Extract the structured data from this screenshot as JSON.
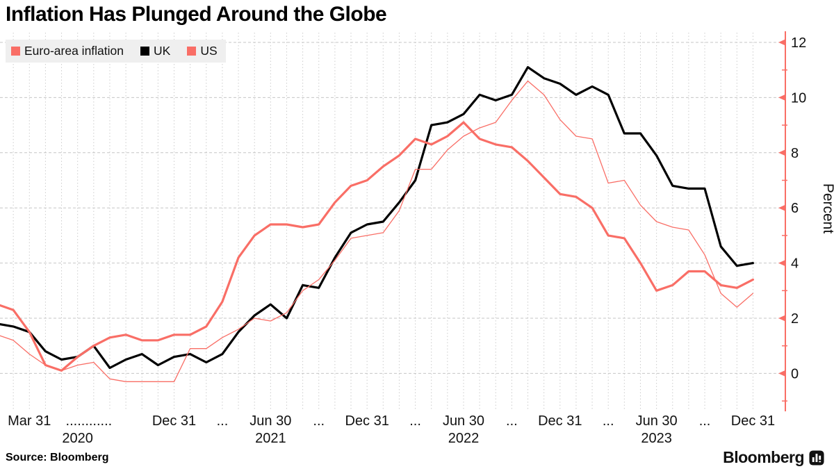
{
  "title": "Inflation Has Plunged Around the Globe",
  "source": "Source: Bloomberg",
  "brand": {
    "name": "Bloomberg",
    "icon": "bar-chart-icon"
  },
  "colors": {
    "salmon": "#f96e66",
    "uk_black": "#000000",
    "grid": "#cccccc",
    "legend_bg": "#efefef",
    "axis": "#f96e66",
    "text": "#111111"
  },
  "legend": [
    {
      "label": "Euro-area inflation",
      "color": "#f96e66"
    },
    {
      "label": "UK",
      "color": "#000000"
    },
    {
      "label": "US",
      "color": "#f96e66"
    }
  ],
  "chart_data": {
    "type": "line",
    "title": "Inflation Has Plunged Around the Globe",
    "ylabel": "Percent",
    "x_unit": "month",
    "x_start": "2020-01",
    "x_end": "2023-12",
    "ylim": [
      -1.3,
      12.4
    ],
    "grid": "dotted monthly verticals, dashed horizontals at even values",
    "legend_position": "top-left",
    "yticks_major": [
      0,
      2,
      4,
      6,
      8,
      10,
      12
    ],
    "yticks_minor": [
      -1,
      1,
      3,
      5,
      7,
      9,
      11
    ],
    "x_ticks": [
      {
        "m": 2,
        "label": "Mar 31"
      },
      {
        "m": 5.7,
        "label": "............",
        "year": "2020",
        "year_m": 5
      },
      {
        "m": 11,
        "label": "Dec 31"
      },
      {
        "m": 14,
        "label": "..."
      },
      {
        "m": 17,
        "label": "Jun 30",
        "year": "2021",
        "year_m": 17
      },
      {
        "m": 20,
        "label": "..."
      },
      {
        "m": 23,
        "label": "Dec 31"
      },
      {
        "m": 26,
        "label": "..."
      },
      {
        "m": 29,
        "label": "Jun 30",
        "year": "2022",
        "year_m": 29
      },
      {
        "m": 32,
        "label": "..."
      },
      {
        "m": 35,
        "label": "Dec 31"
      },
      {
        "m": 38,
        "label": "..."
      },
      {
        "m": 41,
        "label": "Jun 30",
        "year": "2023",
        "year_m": 41
      },
      {
        "m": 44,
        "label": "..."
      },
      {
        "m": 47,
        "label": "Dec 31"
      }
    ],
    "draw_order": [
      1,
      2,
      0
    ],
    "series": [
      {
        "name": "Euro-area inflation",
        "color": "#f96e66",
        "width": 1.3,
        "values": [
          1.4,
          1.2,
          0.7,
          0.3,
          0.1,
          0.3,
          0.4,
          -0.2,
          -0.3,
          -0.3,
          -0.3,
          -0.3,
          0.9,
          0.9,
          1.3,
          1.6,
          2.0,
          1.9,
          2.2,
          3.0,
          3.4,
          4.1,
          4.9,
          5.0,
          5.1,
          5.9,
          7.4,
          7.4,
          8.1,
          8.6,
          8.9,
          9.1,
          9.9,
          10.6,
          10.1,
          9.2,
          8.6,
          8.5,
          6.9,
          7.0,
          6.1,
          5.5,
          5.3,
          5.2,
          4.3,
          2.9,
          2.4,
          2.9
        ]
      },
      {
        "name": "UK",
        "color": "#000000",
        "width": 3.2,
        "values": [
          1.8,
          1.7,
          1.5,
          0.8,
          0.5,
          0.6,
          1.0,
          0.2,
          0.5,
          0.7,
          0.3,
          0.6,
          0.7,
          0.4,
          0.7,
          1.5,
          2.1,
          2.5,
          2.0,
          3.2,
          3.1,
          4.2,
          5.1,
          5.4,
          5.5,
          6.2,
          7.0,
          9.0,
          9.1,
          9.4,
          10.1,
          9.9,
          10.1,
          11.1,
          10.7,
          10.5,
          10.1,
          10.4,
          10.1,
          8.7,
          8.7,
          7.9,
          6.8,
          6.7,
          6.7,
          4.6,
          3.9,
          4.0
        ]
      },
      {
        "name": "US",
        "color": "#f96e66",
        "width": 3.2,
        "values": [
          2.5,
          2.3,
          1.5,
          0.3,
          0.1,
          0.6,
          1.0,
          1.3,
          1.4,
          1.2,
          1.2,
          1.4,
          1.4,
          1.7,
          2.6,
          4.2,
          5.0,
          5.4,
          5.4,
          5.3,
          5.4,
          6.2,
          6.8,
          7.0,
          7.5,
          7.9,
          8.5,
          8.3,
          8.6,
          9.1,
          8.5,
          8.3,
          8.2,
          7.7,
          7.1,
          6.5,
          6.4,
          6.0,
          5.0,
          4.9,
          4.0,
          3.0,
          3.2,
          3.7,
          3.7,
          3.2,
          3.1,
          3.4
        ]
      }
    ]
  }
}
